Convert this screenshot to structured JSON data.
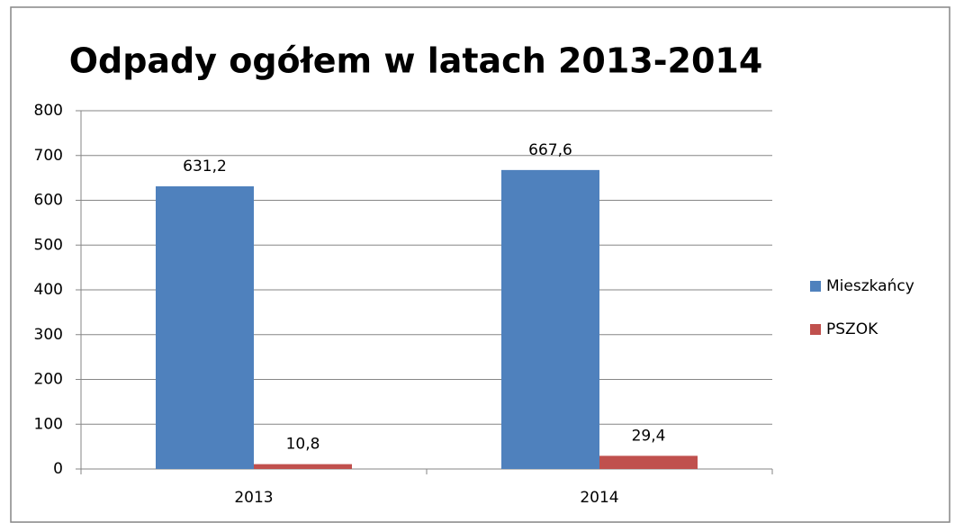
{
  "chart_data": {
    "type": "bar",
    "title": "Odpady ogółem w latach 2013-2014",
    "categories": [
      "2013",
      "2014"
    ],
    "series": [
      {
        "name": "Mieszkańcy",
        "color": "#4f81bd",
        "values": [
          631.2,
          667.6
        ],
        "value_labels": [
          "631,2",
          "667,6"
        ]
      },
      {
        "name": "PSZOK",
        "color": "#c0504d",
        "values": [
          10.8,
          29.4
        ],
        "value_labels": [
          "10,8",
          "29,4"
        ]
      }
    ],
    "ylim": [
      0,
      800
    ],
    "yticks": [
      0,
      100,
      200,
      300,
      400,
      500,
      600,
      700,
      800
    ],
    "grid": true,
    "legend": "right"
  }
}
